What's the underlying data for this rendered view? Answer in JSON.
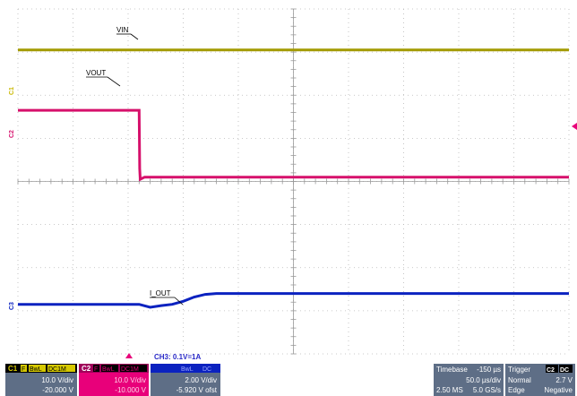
{
  "colors": {
    "ch1": "#a39a00",
    "ch2": "#d6106b",
    "ch3": "#0b22c0",
    "trigger_marker": "#e8007a",
    "panel_bg": "#5e6e86",
    "panel_dark": "#000000"
  },
  "trace_labels": {
    "vin": "VIN",
    "vout": "VOUT",
    "iout": "I_OUT"
  },
  "channel_markers": {
    "c1": "C1",
    "c2": "C2",
    "c3": "C3"
  },
  "annotation": "CH3: 0.1V=1A",
  "channels": [
    {
      "id": "C1",
      "tag1": "F",
      "tag2": "BwL",
      "tag3": "DC1M",
      "vdiv": "10.0 V/div",
      "offset": "-20.000 V"
    },
    {
      "id": "C2",
      "tag1": "F",
      "tag2": "BwL",
      "tag3": "DC1M",
      "vdiv": "10.0 V/div",
      "offset": "-10.000 V"
    },
    {
      "id": "",
      "tag1": "",
      "tag2": "BwL",
      "tag3": "DC",
      "vdiv": "2.00 V/div",
      "offset": "-5.920 V ofst"
    }
  ],
  "timebase": {
    "label": "Timebase",
    "delay": "-150 µs",
    "per_div": "50.0 µs/div",
    "samples": "2.50 MS",
    "rate": "5.0 GS/s"
  },
  "trigger": {
    "label": "Trigger",
    "source": "C2",
    "coupling": "DC",
    "mode": "Normal",
    "level": "2.7 V",
    "type": "Edge",
    "slope": "Negative"
  },
  "chart_data": {
    "type": "line",
    "x_divisions": 10,
    "y_divisions": 8,
    "x_unit": "div",
    "y_unit": "div",
    "series": [
      {
        "x": [
          0,
          10
        ],
        "y": [
          7.05,
          7.05
        ]
      },
      {
        "x": [
          0,
          2.2,
          2.21,
          2.22,
          2.3,
          10
        ],
        "y": [
          5.65,
          5.65,
          4.3,
          4.05,
          4.1,
          4.1
        ]
      },
      {
        "x": [
          0,
          2.2,
          2.4,
          2.6,
          2.8,
          3.0,
          3.2,
          3.4,
          3.6,
          10
        ],
        "y": [
          1.15,
          1.15,
          1.08,
          1.12,
          1.15,
          1.22,
          1.32,
          1.38,
          1.4,
          1.4
        ]
      }
    ]
  }
}
